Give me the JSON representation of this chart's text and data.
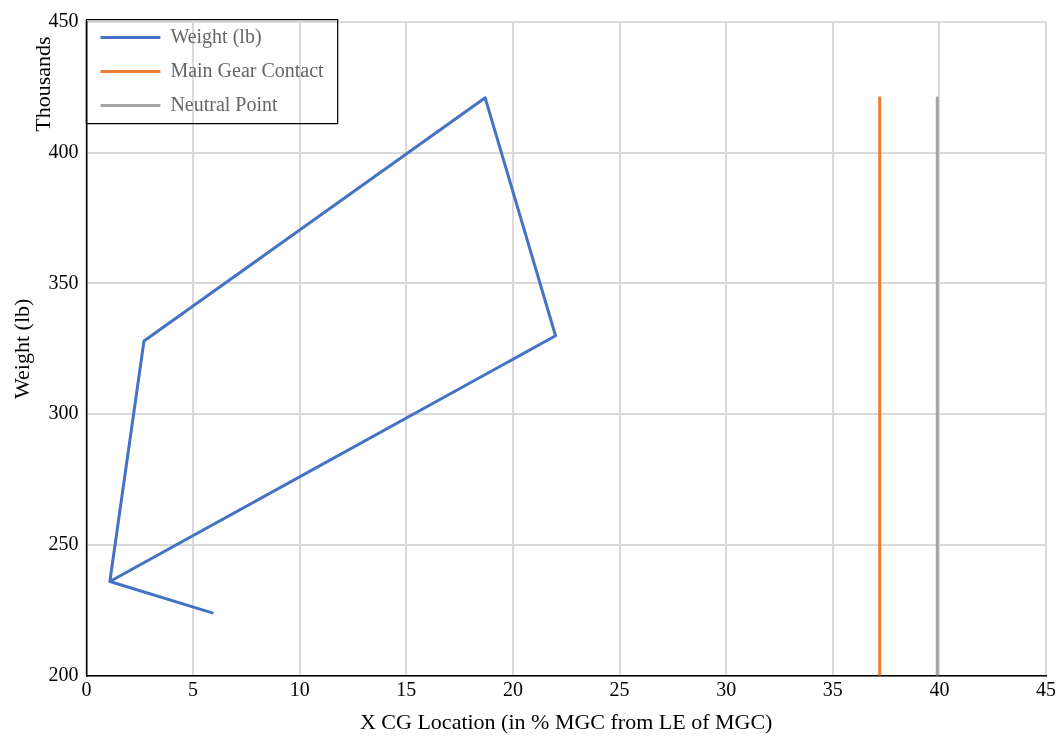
{
  "chart_data": {
    "type": "line",
    "xlabel": "X CG Location (in % MGC from LE of MGC)",
    "ylabel": "Weight (lb)",
    "annotations": [
      "Thousands"
    ],
    "xlim": [
      0,
      45
    ],
    "xticks": [
      0,
      5,
      10,
      15,
      20,
      25,
      30,
      35,
      40,
      45
    ],
    "ylim": [
      200,
      450
    ],
    "yticks": [
      200,
      250,
      300,
      350,
      400,
      450
    ],
    "grid": true,
    "legend": "top left",
    "marker": "none",
    "line_style": "solid",
    "series": [
      {
        "name": "Weight (lb)",
        "color": "#4472c4",
        "x": [
          5.9,
          1.1,
          22,
          18.7,
          2.7,
          1.1
        ],
        "values": [
          224,
          236,
          330,
          421,
          328,
          236
        ]
      },
      {
        "name": "Main Gear Contact",
        "color": "#ed7d31",
        "x": [
          37.2,
          37.2
        ],
        "values": [
          200,
          421
        ]
      },
      {
        "name": "Neutral Point",
        "color": "#a5a5a5",
        "x": [
          39.9,
          39.9
        ],
        "values": [
          200,
          421
        ]
      }
    ]
  }
}
